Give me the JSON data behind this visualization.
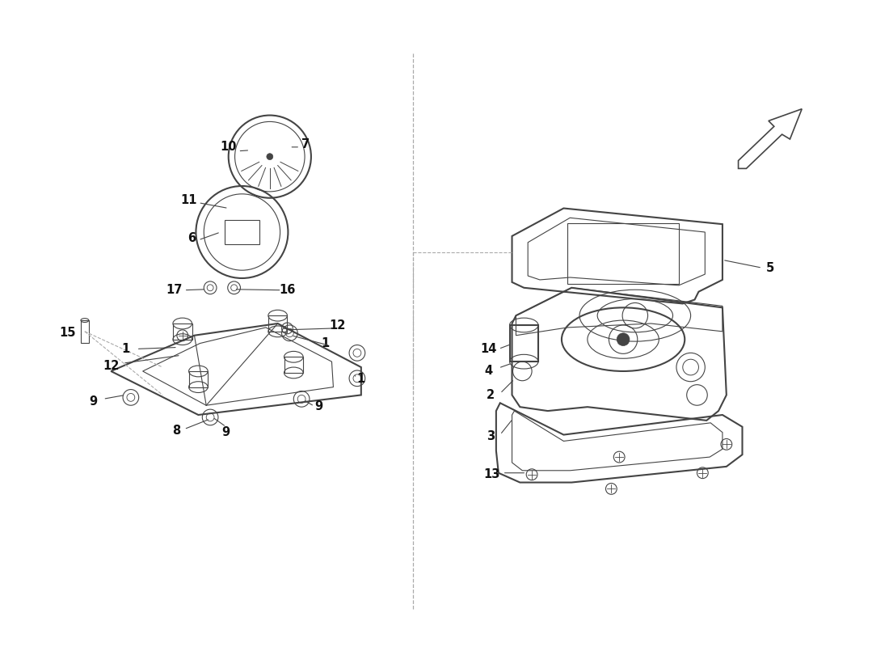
{
  "bg_color": "#ffffff",
  "line_color": "#444444",
  "label_color": "#111111",
  "label_fontsize": 10.5,
  "fig_width": 11.0,
  "fig_height": 8.0,
  "dpi": 100
}
